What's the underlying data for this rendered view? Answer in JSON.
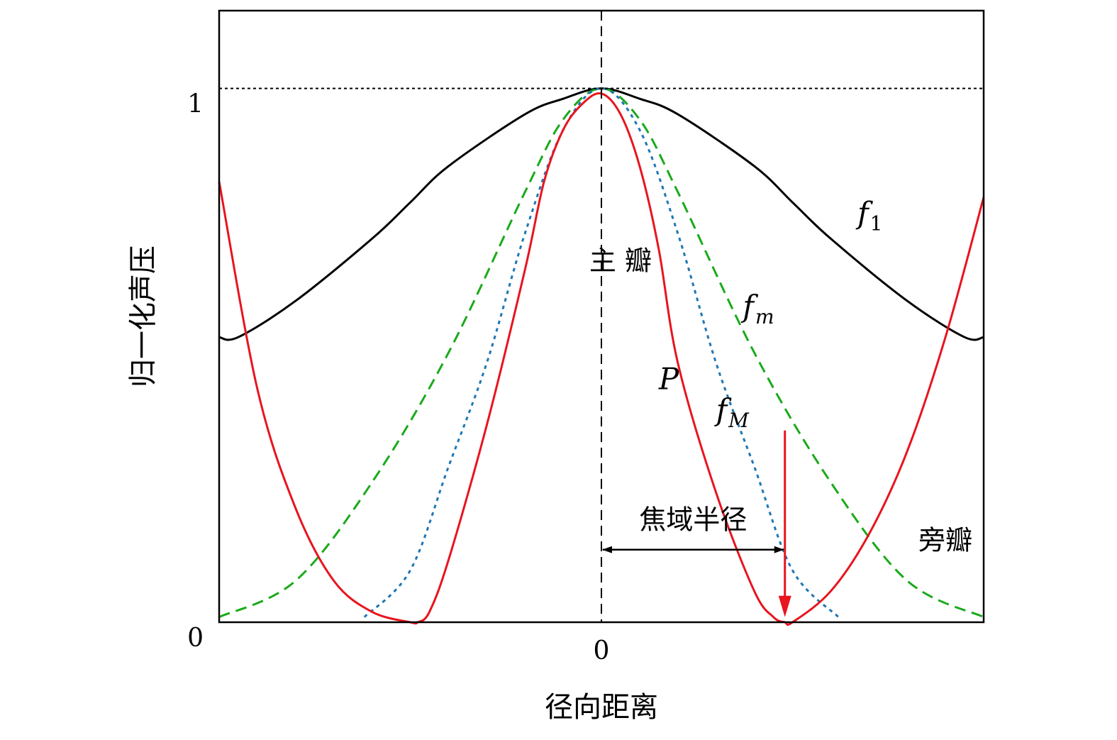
{
  "chart_data": {
    "type": "line",
    "xlabel": "径向距离",
    "ylabel": "归一化声压",
    "xlim": [
      -1,
      1
    ],
    "ylim": [
      0,
      1.18
    ],
    "x_ticks": [
      {
        "value": 0,
        "label": "0"
      }
    ],
    "y_ticks": [
      {
        "value": 0,
        "label": "0"
      },
      {
        "value": 1.03,
        "label": "1"
      }
    ],
    "series": [
      {
        "name": "f",
        "subscript": "1",
        "color": "#000000",
        "style": "solid",
        "label_at": [
          0.67,
          0.77
        ],
        "x": [
          -1,
          -0.95,
          -0.8,
          -0.6,
          -0.5,
          -0.4,
          -0.2,
          -0.1,
          0,
          0.1,
          0.2,
          0.4,
          0.5,
          0.6,
          0.8,
          0.95,
          1
        ],
        "y": [
          0.55,
          0.55,
          0.62,
          0.74,
          0.81,
          0.88,
          0.98,
          1.01,
          1.03,
          1.01,
          0.98,
          0.88,
          0.81,
          0.74,
          0.62,
          0.55,
          0.55
        ]
      },
      {
        "name": "f",
        "subscript": "m",
        "color": "#1aaa1a",
        "style": "dashed",
        "label_at": [
          0.37,
          0.59
        ],
        "x": [
          -1,
          -0.8,
          -0.6,
          -0.4,
          -0.2,
          -0.1,
          0,
          0.1,
          0.2,
          0.4,
          0.6,
          0.8,
          1
        ],
        "y": [
          0.01,
          0.08,
          0.27,
          0.52,
          0.83,
          0.97,
          1.03,
          0.97,
          0.83,
          0.52,
          0.27,
          0.08,
          0.01
        ]
      },
      {
        "name": "f",
        "subscript": "M",
        "color": "#1f77b4",
        "style": "dotted",
        "label_at": [
          0.3,
          0.39
        ],
        "x": [
          -0.62,
          -0.5,
          -0.4,
          -0.3,
          -0.2,
          -0.1,
          0,
          0.1,
          0.2,
          0.3,
          0.4,
          0.5,
          0.62
        ],
        "y": [
          0.01,
          0.1,
          0.3,
          0.5,
          0.75,
          0.95,
          1.03,
          0.95,
          0.75,
          0.5,
          0.3,
          0.1,
          0.01
        ]
      },
      {
        "name": "P",
        "subscript": "",
        "color": "#e8141e",
        "style": "solid",
        "label_at": [
          0.15,
          0.45
        ],
        "x": [
          -1,
          -0.9,
          -0.8,
          -0.7,
          -0.6,
          -0.5,
          -0.48,
          -0.45,
          -0.4,
          -0.3,
          -0.2,
          -0.15,
          -0.1,
          -0.05,
          0,
          0.05,
          0.1,
          0.15,
          0.2,
          0.3,
          0.4,
          0.45,
          0.48,
          0.5,
          0.6,
          0.7,
          0.8,
          0.9,
          1
        ],
        "y": [
          0.85,
          0.45,
          0.22,
          0.08,
          0.02,
          0.0,
          0.0,
          0.02,
          0.12,
          0.38,
          0.68,
          0.85,
          0.95,
          1.0,
          1.02,
          0.98,
          0.88,
          0.72,
          0.5,
          0.25,
          0.06,
          0.01,
          0.0,
          0.0,
          0.06,
          0.17,
          0.33,
          0.55,
          0.82
        ]
      }
    ],
    "annotations": {
      "main_lobe": {
        "text": "主 瓣",
        "at": [
          0.05,
          0.68
        ]
      },
      "side_lobe": {
        "text": "旁瓣",
        "at": [
          0.9,
          0.14
        ]
      },
      "focal_radius": {
        "text": "焦域半径",
        "at": [
          0.24,
          0.18
        ],
        "from": 0,
        "to": 0.48,
        "arrow_y": 0.14
      },
      "red_arrow": {
        "x": 0.48,
        "from_y": 0.37,
        "to_y": 0.01,
        "color": "#e8141e"
      },
      "reference_line": {
        "y": 1.03,
        "style": "dotted",
        "color": "#000000"
      },
      "center_line": {
        "x": 0,
        "style": "dashed",
        "color": "#000000"
      }
    }
  }
}
